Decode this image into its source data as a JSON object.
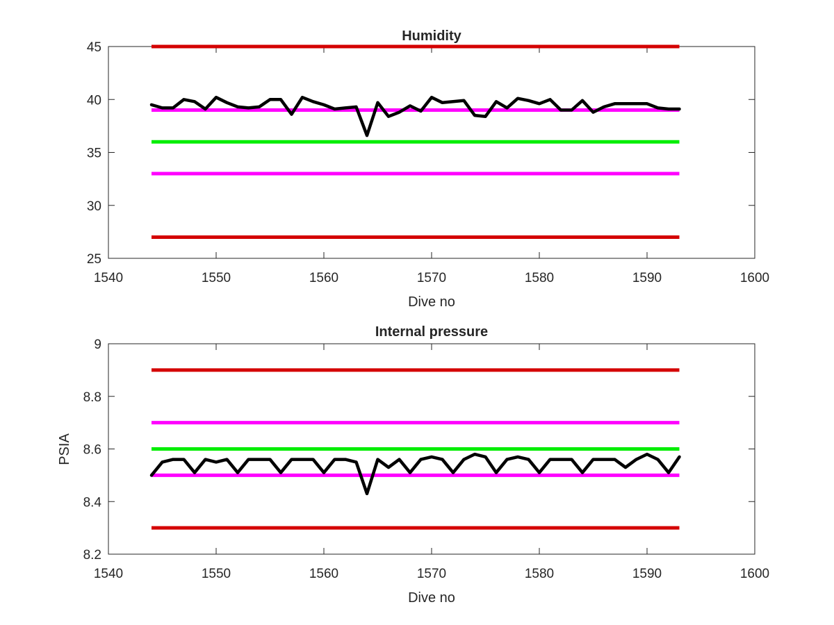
{
  "colors": {
    "background": "#ffffff",
    "axes": "#262626",
    "limit_red": "#d40000",
    "limit_magenta": "#ff00ff",
    "target_green": "#00ee00",
    "data_line": "#000000"
  },
  "chart_data": [
    {
      "type": "line",
      "title": "Humidity",
      "xlabel": "Dive no",
      "ylabel": "",
      "xlim": [
        1540,
        1600
      ],
      "ylim": [
        25,
        45
      ],
      "xticks": [
        1540,
        1550,
        1560,
        1570,
        1580,
        1590,
        1600
      ],
      "yticks": [
        25,
        30,
        35,
        40,
        45
      ],
      "grid": false,
      "legend": "none",
      "hlines": [
        {
          "y": 45,
          "color": "#d40000",
          "x": [
            1544,
            1593
          ]
        },
        {
          "y": 39,
          "color": "#ff00ff",
          "x": [
            1544,
            1593
          ]
        },
        {
          "y": 36,
          "color": "#00ee00",
          "x": [
            1544,
            1593
          ]
        },
        {
          "y": 33,
          "color": "#ff00ff",
          "x": [
            1544,
            1593
          ]
        },
        {
          "y": 27,
          "color": "#d40000",
          "x": [
            1544,
            1593
          ]
        }
      ],
      "series": [
        {
          "color": "#000000",
          "x": [
            1544,
            1545,
            1546,
            1547,
            1548,
            1549,
            1550,
            1551,
            1552,
            1553,
            1554,
            1555,
            1556,
            1557,
            1558,
            1559,
            1560,
            1561,
            1562,
            1563,
            1564,
            1565,
            1566,
            1567,
            1568,
            1569,
            1570,
            1571,
            1572,
            1573,
            1574,
            1575,
            1576,
            1577,
            1578,
            1579,
            1580,
            1581,
            1582,
            1583,
            1584,
            1585,
            1586,
            1587,
            1588,
            1589,
            1590,
            1591,
            1592,
            1593
          ],
          "y": [
            39.5,
            39.2,
            39.2,
            40.0,
            39.8,
            39.1,
            40.2,
            39.7,
            39.3,
            39.2,
            39.3,
            40.0,
            40.0,
            38.6,
            40.2,
            39.8,
            39.5,
            39.1,
            39.2,
            39.3,
            36.6,
            39.7,
            38.4,
            38.8,
            39.4,
            38.9,
            40.2,
            39.7,
            39.8,
            39.9,
            38.5,
            38.4,
            39.8,
            39.2,
            40.1,
            39.9,
            39.6,
            40.0,
            39.0,
            39.0,
            39.9,
            38.8,
            39.3,
            39.6,
            39.6,
            39.6,
            39.6,
            39.2,
            39.1,
            39.1
          ]
        }
      ]
    },
    {
      "type": "line",
      "title": "Internal pressure",
      "xlabel": "Dive no",
      "ylabel": "PSIA",
      "xlim": [
        1540,
        1600
      ],
      "ylim": [
        8.2,
        9.0
      ],
      "xticks": [
        1540,
        1550,
        1560,
        1570,
        1580,
        1590,
        1600
      ],
      "yticks": [
        8.2,
        8.4,
        8.6,
        8.8,
        9.0
      ],
      "ytick_labels": [
        "8.2",
        "8.4",
        "8.6",
        "8.8",
        "9"
      ],
      "grid": false,
      "legend": "none",
      "hlines": [
        {
          "y": 8.9,
          "color": "#d40000",
          "x": [
            1544,
            1593
          ]
        },
        {
          "y": 8.7,
          "color": "#ff00ff",
          "x": [
            1544,
            1593
          ]
        },
        {
          "y": 8.6,
          "color": "#00ee00",
          "x": [
            1544,
            1593
          ]
        },
        {
          "y": 8.5,
          "color": "#ff00ff",
          "x": [
            1544,
            1593
          ]
        },
        {
          "y": 8.3,
          "color": "#d40000",
          "x": [
            1544,
            1593
          ]
        }
      ],
      "series": [
        {
          "color": "#000000",
          "x": [
            1544,
            1545,
            1546,
            1547,
            1548,
            1549,
            1550,
            1551,
            1552,
            1553,
            1554,
            1555,
            1556,
            1557,
            1558,
            1559,
            1560,
            1561,
            1562,
            1563,
            1564,
            1565,
            1566,
            1567,
            1568,
            1569,
            1570,
            1571,
            1572,
            1573,
            1574,
            1575,
            1576,
            1577,
            1578,
            1579,
            1580,
            1581,
            1582,
            1583,
            1584,
            1585,
            1586,
            1587,
            1588,
            1589,
            1590,
            1591,
            1592,
            1593
          ],
          "y": [
            8.5,
            8.55,
            8.56,
            8.56,
            8.51,
            8.56,
            8.55,
            8.56,
            8.51,
            8.56,
            8.56,
            8.56,
            8.51,
            8.56,
            8.56,
            8.56,
            8.51,
            8.56,
            8.56,
            8.55,
            8.43,
            8.56,
            8.53,
            8.56,
            8.51,
            8.56,
            8.57,
            8.56,
            8.51,
            8.56,
            8.58,
            8.57,
            8.51,
            8.56,
            8.57,
            8.56,
            8.51,
            8.56,
            8.56,
            8.56,
            8.51,
            8.56,
            8.56,
            8.56,
            8.53,
            8.56,
            8.58,
            8.56,
            8.51,
            8.57
          ]
        }
      ]
    }
  ]
}
